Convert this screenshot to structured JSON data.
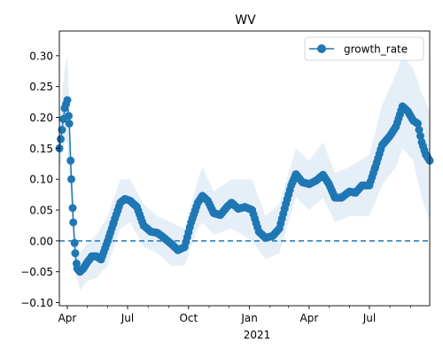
{
  "chart_data": {
    "type": "line",
    "title": "WV",
    "xlabel": "",
    "ylabel": "",
    "x_range": [
      "2020-03-20",
      "2021-09-30"
    ],
    "ylim": [
      -0.105,
      0.34
    ],
    "x_ticks": [
      {
        "date": "2020-04-01",
        "label": "Apr"
      },
      {
        "date": "2020-07-01",
        "label": "Jul"
      },
      {
        "date": "2020-10-01",
        "label": "Oct"
      },
      {
        "date": "2021-01-01",
        "label": "Jan"
      },
      {
        "date": "2021-04-01",
        "label": "Apr"
      },
      {
        "date": "2021-07-01",
        "label": "Jul"
      }
    ],
    "x_year_label": "2021",
    "y_ticks": [
      -0.1,
      -0.05,
      0.0,
      0.05,
      0.1,
      0.15,
      0.2,
      0.25,
      0.3
    ],
    "y_tick_labels": [
      "−0.10",
      "−0.05",
      "0.00",
      "0.05",
      "0.10",
      "0.15",
      "0.20",
      "0.25",
      "0.30"
    ],
    "reference_line": {
      "y": 0.0,
      "style": "dashed"
    },
    "legend": {
      "position": "top-right",
      "entries": [
        "growth_rate"
      ]
    },
    "grid": false,
    "colors": {
      "line": "#1f77b4",
      "band": "#dce8f5"
    },
    "series": [
      {
        "name": "growth_rate",
        "points": [
          [
            "2020-03-20",
            0.15
          ],
          [
            "2020-03-24",
            0.18
          ],
          [
            "2020-03-28",
            0.215
          ],
          [
            "2020-04-01",
            0.228
          ],
          [
            "2020-04-04",
            0.19
          ],
          [
            "2020-04-07",
            0.1
          ],
          [
            "2020-04-10",
            0.03
          ],
          [
            "2020-04-13",
            -0.02
          ],
          [
            "2020-04-16",
            -0.045
          ],
          [
            "2020-04-20",
            -0.05
          ],
          [
            "2020-04-25",
            -0.045
          ],
          [
            "2020-05-01",
            -0.035
          ],
          [
            "2020-05-08",
            -0.025
          ],
          [
            "2020-05-15",
            -0.025
          ],
          [
            "2020-05-22",
            -0.03
          ],
          [
            "2020-06-01",
            0.0
          ],
          [
            "2020-06-10",
            0.03
          ],
          [
            "2020-06-20",
            0.062
          ],
          [
            "2020-06-27",
            0.068
          ],
          [
            "2020-07-05",
            0.065
          ],
          [
            "2020-07-15",
            0.055
          ],
          [
            "2020-07-25",
            0.025
          ],
          [
            "2020-08-05",
            0.015
          ],
          [
            "2020-08-15",
            0.013
          ],
          [
            "2020-08-25",
            0.005
          ],
          [
            "2020-09-05",
            -0.005
          ],
          [
            "2020-09-15",
            -0.015
          ],
          [
            "2020-09-25",
            -0.01
          ],
          [
            "2020-10-05",
            0.03
          ],
          [
            "2020-10-15",
            0.062
          ],
          [
            "2020-10-22",
            0.073
          ],
          [
            "2020-10-30",
            0.065
          ],
          [
            "2020-11-08",
            0.045
          ],
          [
            "2020-11-18",
            0.042
          ],
          [
            "2020-11-28",
            0.055
          ],
          [
            "2020-12-05",
            0.062
          ],
          [
            "2020-12-15",
            0.052
          ],
          [
            "2020-12-25",
            0.055
          ],
          [
            "2021-01-05",
            0.05
          ],
          [
            "2021-01-15",
            0.015
          ],
          [
            "2021-01-25",
            0.005
          ],
          [
            "2021-02-05",
            0.008
          ],
          [
            "2021-02-15",
            0.02
          ],
          [
            "2021-02-25",
            0.06
          ],
          [
            "2021-03-05",
            0.09
          ],
          [
            "2021-03-12",
            0.108
          ],
          [
            "2021-03-22",
            0.095
          ],
          [
            "2021-04-01",
            0.092
          ],
          [
            "2021-04-12",
            0.098
          ],
          [
            "2021-04-22",
            0.107
          ],
          [
            "2021-05-01",
            0.092
          ],
          [
            "2021-05-10",
            0.07
          ],
          [
            "2021-05-20",
            0.07
          ],
          [
            "2021-06-01",
            0.08
          ],
          [
            "2021-06-10",
            0.078
          ],
          [
            "2021-06-20",
            0.09
          ],
          [
            "2021-07-01",
            0.09
          ],
          [
            "2021-07-10",
            0.12
          ],
          [
            "2021-07-20",
            0.155
          ],
          [
            "2021-08-01",
            0.17
          ],
          [
            "2021-08-10",
            0.185
          ],
          [
            "2021-08-20",
            0.218
          ],
          [
            "2021-08-28",
            0.21
          ],
          [
            "2021-09-05",
            0.195
          ],
          [
            "2021-09-12",
            0.19
          ],
          [
            "2021-09-18",
            0.16
          ],
          [
            "2021-09-24",
            0.14
          ],
          [
            "2021-09-30",
            0.13
          ]
        ]
      }
    ],
    "confidence_band": [
      [
        "2020-03-20",
        0.11,
        0.19
      ],
      [
        "2020-03-28",
        0.16,
        0.28
      ],
      [
        "2020-04-01",
        0.16,
        0.3
      ],
      [
        "2020-04-07",
        0.06,
        0.15
      ],
      [
        "2020-04-13",
        -0.05,
        0.01
      ],
      [
        "2020-04-20",
        -0.08,
        -0.02
      ],
      [
        "2020-05-01",
        -0.065,
        -0.005
      ],
      [
        "2020-05-15",
        -0.06,
        0.01
      ],
      [
        "2020-06-01",
        -0.04,
        0.04
      ],
      [
        "2020-06-20",
        0.02,
        0.1
      ],
      [
        "2020-07-05",
        0.03,
        0.1
      ],
      [
        "2020-07-25",
        -0.01,
        0.06
      ],
      [
        "2020-08-15",
        -0.02,
        0.04
      ],
      [
        "2020-09-05",
        -0.04,
        0.03
      ],
      [
        "2020-09-25",
        -0.04,
        0.02
      ],
      [
        "2020-10-15",
        0.02,
        0.1
      ],
      [
        "2020-10-22",
        0.03,
        0.12
      ],
      [
        "2020-11-08",
        0.01,
        0.08
      ],
      [
        "2020-12-05",
        0.02,
        0.1
      ],
      [
        "2021-01-05",
        0.0,
        0.1
      ],
      [
        "2021-01-25",
        -0.03,
        0.04
      ],
      [
        "2021-02-15",
        -0.02,
        0.06
      ],
      [
        "2021-03-12",
        0.07,
        0.15
      ],
      [
        "2021-04-01",
        0.05,
        0.13
      ],
      [
        "2021-04-22",
        0.07,
        0.16
      ],
      [
        "2021-05-10",
        0.03,
        0.11
      ],
      [
        "2021-06-01",
        0.04,
        0.12
      ],
      [
        "2021-07-01",
        0.04,
        0.14
      ],
      [
        "2021-07-20",
        0.09,
        0.22
      ],
      [
        "2021-08-10",
        0.12,
        0.27
      ],
      [
        "2021-08-20",
        0.15,
        0.3
      ],
      [
        "2021-09-05",
        0.13,
        0.28
      ],
      [
        "2021-09-18",
        0.07,
        0.24
      ],
      [
        "2021-09-30",
        0.03,
        0.21
      ]
    ]
  }
}
